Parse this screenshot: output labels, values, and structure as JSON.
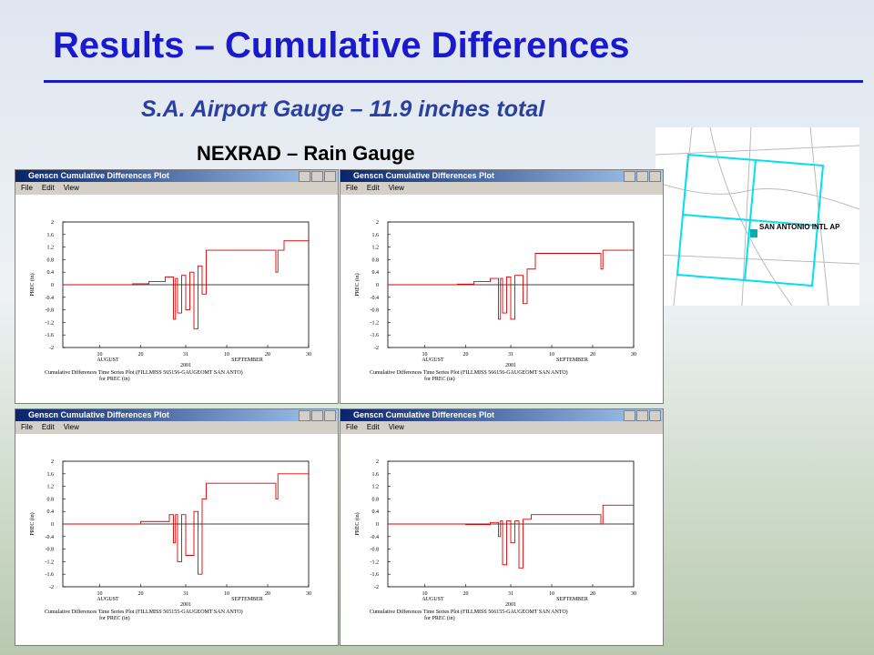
{
  "header": {
    "title": "Results – Cumulative Differences",
    "subtitle": "S.A. Airport Gauge – 11.9 inches total",
    "label": "NEXRAD – Rain Gauge"
  },
  "map": {
    "station": "SAN ANTONIO INTL AP",
    "marker": "S"
  },
  "windows": [
    {
      "title": "Genscn Cumulative Differences Plot",
      "menu": [
        "File",
        "Edit",
        "View"
      ],
      "chart": {
        "type": "line",
        "color": "#e00000",
        "ylabel": "PREC (in)",
        "months": [
          "AUGUST",
          "SEPTEMBER"
        ],
        "year": "2001",
        "caption": [
          "Cumulative Differences Time Series Plot (FILLMISS 565156-GAUGEOMT SAN ANTO)",
          "for PREC (in)"
        ],
        "xlim": [
          1,
          61
        ],
        "ylim": [
          -2,
          2
        ],
        "xticks": [
          10,
          20,
          31,
          {
            "value": 41,
            "label": "10"
          },
          {
            "value": 51,
            "label": "20"
          },
          {
            "value": 61,
            "label": "30"
          }
        ],
        "yticks": [
          2,
          1.6,
          1.2,
          0.8,
          0.4,
          0,
          -0.4,
          -0.8,
          -1.2,
          -1.6,
          -2
        ],
        "x": [
          1,
          18,
          18,
          22,
          22,
          26,
          26,
          28,
          28,
          28.5,
          28.5,
          29,
          29,
          30,
          30,
          31,
          31,
          32,
          32,
          33,
          33,
          34,
          34,
          35,
          35,
          36,
          36,
          53,
          53,
          53.5,
          53.5,
          55,
          55,
          61
        ],
        "values": [
          0,
          0,
          0.03,
          0.03,
          0.1,
          0.1,
          0.25,
          0.25,
          -1.1,
          -1.1,
          0.2,
          0.2,
          -0.9,
          -0.9,
          0.3,
          0.3,
          -0.8,
          -0.8,
          0.4,
          0.4,
          -1.4,
          -1.4,
          0.6,
          0.6,
          -0.3,
          -0.3,
          1.1,
          1.1,
          0.4,
          0.4,
          1.1,
          1.1,
          1.4,
          1.4
        ]
      }
    },
    {
      "title": "Genscn Cumulative Differences Plot",
      "menu": [
        "File",
        "Edit",
        "View"
      ],
      "chart": {
        "type": "line",
        "color": "#e00000",
        "ylabel": "PREC (in)",
        "months": [
          "AUGUST",
          "SEPTEMBER"
        ],
        "year": "2001",
        "caption": [
          "Cumulative Differences Time Series Plot (FILLMISS 566156-GAUGEOMT SAN ANTO)",
          "for PREC (in)"
        ],
        "xlim": [
          1,
          61
        ],
        "ylim": [
          -2,
          2
        ],
        "xticks": [
          10,
          20,
          31,
          {
            "value": 41,
            "label": "10"
          },
          {
            "value": 51,
            "label": "20"
          },
          {
            "value": 61,
            "label": "30"
          }
        ],
        "yticks": [
          2,
          1.6,
          1.2,
          0.8,
          0.4,
          0,
          -0.4,
          -0.8,
          -1.2,
          -1.6,
          -2
        ],
        "x": [
          1,
          18,
          18,
          22,
          22,
          26,
          26,
          28,
          28,
          28.5,
          28.5,
          29,
          29,
          30,
          30,
          31,
          31,
          32,
          32,
          34,
          34,
          35,
          35,
          37,
          37,
          53,
          53,
          53.5,
          53.5,
          61
        ],
        "values": [
          0,
          0,
          0.02,
          0.02,
          0.1,
          0.1,
          0.2,
          0.2,
          -1.1,
          -1.1,
          0.2,
          0.2,
          -0.9,
          -0.9,
          0.25,
          0.25,
          -1.1,
          -1.1,
          0.3,
          0.3,
          -0.6,
          -0.6,
          0.5,
          0.5,
          1.0,
          1.0,
          0.5,
          0.5,
          1.1,
          1.1
        ]
      }
    },
    {
      "title": "Genscn Cumulative Differences Plot",
      "menu": [
        "File",
        "Edit",
        "View"
      ],
      "chart": {
        "type": "line",
        "color": "#e00000",
        "ylabel": "PREC (in)",
        "months": [
          "AUGUST",
          "SEPTEMBER"
        ],
        "year": "2001",
        "caption": [
          "Cumulative Differences Time Series Plot (FILLMISS 565155-GAUGEOMT SAN ANTO)",
          "for PREC (in)"
        ],
        "xlim": [
          1,
          61
        ],
        "ylim": [
          -2,
          2
        ],
        "xticks": [
          10,
          20,
          31,
          {
            "value": 41,
            "label": "10"
          },
          {
            "value": 51,
            "label": "20"
          },
          {
            "value": 61,
            "label": "30"
          }
        ],
        "yticks": [
          2,
          1.6,
          1.2,
          0.8,
          0.4,
          0,
          -0.4,
          -0.8,
          -1.2,
          -1.6,
          -2
        ],
        "x": [
          1,
          20,
          20,
          27,
          27,
          28,
          28,
          28.5,
          28.5,
          29,
          29,
          30,
          30,
          31,
          31,
          33,
          33,
          34,
          34,
          35,
          35,
          36,
          36,
          53,
          53,
          53.5,
          53.5,
          61
        ],
        "values": [
          0,
          0,
          0.08,
          0.08,
          0.3,
          0.3,
          -0.6,
          -0.6,
          0.3,
          0.3,
          -1.2,
          -1.2,
          0.3,
          0.3,
          -1.0,
          -1.0,
          0.4,
          0.4,
          -1.6,
          -1.6,
          0.8,
          0.8,
          1.3,
          1.3,
          0.8,
          0.8,
          1.6,
          1.6
        ]
      }
    },
    {
      "title": "Genscn Cumulative Differences Plot",
      "menu": [
        "File",
        "Edit",
        "View"
      ],
      "chart": {
        "type": "line",
        "color": "#e00000",
        "ylabel": "PREC (in)",
        "months": [
          "AUGUST",
          "SEPTEMBER"
        ],
        "year": "2001",
        "caption": [
          "Cumulative Differences Time Series Plot (FILLMISS 566155-GAUGEOMT SAN ANTO)",
          "for PREC (in)"
        ],
        "xlim": [
          1,
          61
        ],
        "ylim": [
          -2,
          2
        ],
        "xticks": [
          10,
          20,
          31,
          {
            "value": 41,
            "label": "10"
          },
          {
            "value": 51,
            "label": "20"
          },
          {
            "value": 61,
            "label": "30"
          }
        ],
        "yticks": [
          2,
          1.6,
          1.2,
          0.8,
          0.4,
          0,
          -0.4,
          -0.8,
          -1.2,
          -1.6,
          -2
        ],
        "x": [
          1,
          20,
          20,
          26,
          26,
          28,
          28,
          28.5,
          28.5,
          29,
          29,
          30,
          30,
          31,
          31,
          32,
          32,
          33,
          33,
          34,
          34,
          36,
          36,
          53,
          53,
          53.5,
          53.5,
          61
        ],
        "values": [
          0,
          0,
          -0.02,
          -0.02,
          0.05,
          0.05,
          -0.4,
          -0.4,
          0.1,
          0.1,
          -1.3,
          -1.3,
          0.1,
          0.1,
          -0.6,
          -0.6,
          0.1,
          0.1,
          -1.4,
          -1.4,
          0.15,
          0.15,
          0.3,
          0.3,
          0,
          0,
          0.6,
          0.6
        ]
      }
    }
  ]
}
